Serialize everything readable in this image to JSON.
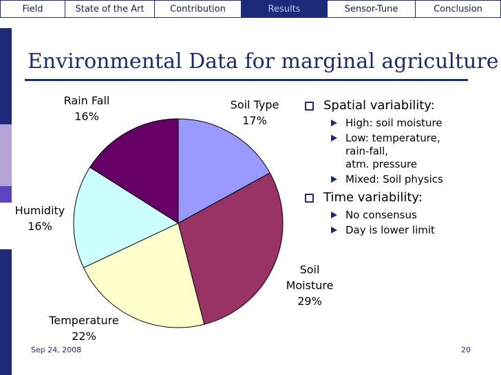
{
  "nav": {
    "tabs": [
      {
        "label": "Field",
        "active": false
      },
      {
        "label": "State of the Art",
        "active": false
      },
      {
        "label": "Contribution",
        "active": false
      },
      {
        "label": "Results",
        "active": true
      },
      {
        "label": "Sensor-Tune",
        "active": false
      },
      {
        "label": "Conclusion",
        "active": false
      }
    ]
  },
  "colors": {
    "accent": "#1d2a7a",
    "sidebar": [
      "#ffffff",
      "#1d2a7a",
      "#b8a3d6",
      "#5c43c4",
      "#ffffff",
      "#1d2a7a"
    ]
  },
  "slide": {
    "title": "Environmental Data for marginal agriculture",
    "bullets": [
      {
        "text": "Spatial variability:",
        "sub": [
          "High: soil moisture",
          "Low: temperature,\nrain-fall,\natm. pressure",
          "Mixed: Soil physics"
        ]
      },
      {
        "text": "Time variability:",
        "sub": [
          "No consensus",
          "Day is lower limit"
        ]
      }
    ],
    "footer": {
      "date": "Sep 24, 2008",
      "page": "20"
    }
  },
  "chart_data": {
    "type": "pie",
    "start_angle_deg": 0,
    "direction": "clockwise",
    "slices": [
      {
        "name": "Soil Type",
        "value": 17,
        "label": [
          "Soil Type",
          "17%"
        ],
        "color": "#9999ff"
      },
      {
        "name": "Soil Moisture",
        "value": 29,
        "label": [
          "Soil",
          "Moisture",
          "29%"
        ],
        "color": "#993366"
      },
      {
        "name": "Temperature",
        "value": 22,
        "label": [
          "Temperature",
          "22%"
        ],
        "color": "#ffffcc"
      },
      {
        "name": "Humidity",
        "value": 16,
        "label": [
          "Humidity",
          "16%"
        ],
        "color": "#ccffff"
      },
      {
        "name": "Rain Fall",
        "value": 16,
        "label": [
          "Rain Fall",
          "16%"
        ],
        "color": "#660066"
      }
    ]
  }
}
